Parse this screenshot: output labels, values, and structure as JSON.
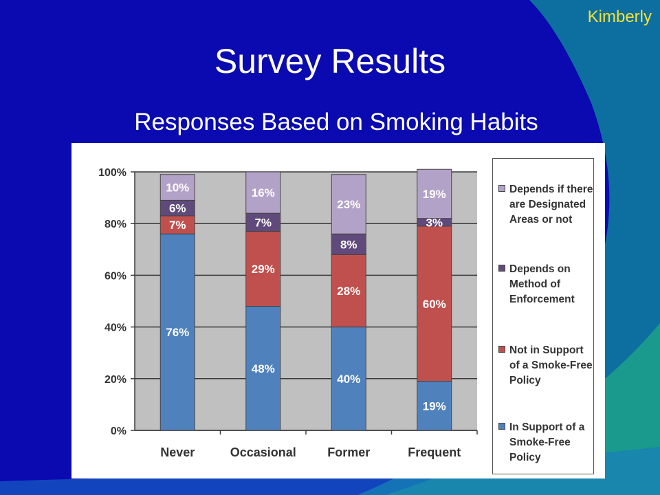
{
  "slide": {
    "title": "Survey Results",
    "subtitle": "Responses Based on Smoking Habits",
    "author": "Kimberly",
    "colors": {
      "background": "#0a0ab0",
      "title_text": "#ffffff",
      "author_text": "#f4e234",
      "decor_teal": "#0d6fa0",
      "decor_green": "#1a9a8c"
    }
  },
  "chart_data": {
    "type": "bar",
    "stacked": true,
    "categories": [
      "Never",
      "Occasional",
      "Former",
      "Frequent"
    ],
    "ylim": [
      0,
      100
    ],
    "yticks": [
      "0%",
      "20%",
      "40%",
      "60%",
      "80%",
      "100%"
    ],
    "grid": true,
    "legend_position": "right",
    "series": [
      {
        "name": "In Support of a Smoke-Free Policy",
        "color": "#4f81bd",
        "values": [
          76,
          48,
          40,
          19
        ],
        "labels": [
          "76%",
          "48%",
          "40%",
          "19%"
        ]
      },
      {
        "name": "Not in Support of a Smoke-Free Policy",
        "color": "#c0504d",
        "values": [
          7,
          29,
          28,
          60
        ],
        "labels": [
          "7%",
          "29%",
          "28%",
          "60%"
        ]
      },
      {
        "name": "Depends on Method of Enforcement",
        "color": "#604a7b",
        "values": [
          6,
          7,
          8,
          3
        ],
        "labels": [
          "6%",
          "7%",
          "8%",
          "3%"
        ]
      },
      {
        "name": "Depends if there are Designated Areas or not",
        "color": "#b3a2c7",
        "values": [
          10,
          16,
          23,
          19
        ],
        "labels": [
          "10%",
          "16%",
          "23%",
          "19%"
        ]
      }
    ]
  }
}
